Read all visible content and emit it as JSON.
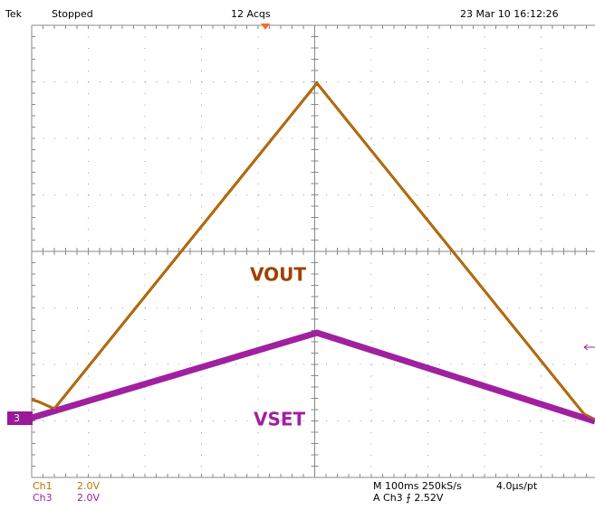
{
  "header": {
    "brand": "Tek",
    "status": "Stopped",
    "acquisitions": "12 Acqs",
    "timestamp": "23 Mar 10 16:12:26"
  },
  "traces": {
    "vout_label": "VOUT",
    "vset_label": "VSET",
    "ch3_marker": "3"
  },
  "footer": {
    "ch1_name": "Ch1",
    "ch1_scale": "2.0V",
    "ch3_name": "Ch3",
    "ch3_scale": "2.0V",
    "timebase": "M 100ms 250kS/s",
    "resolution": "4.0µs/pt",
    "trigger": "A  Ch3  ⨍  2.52V"
  }
}
